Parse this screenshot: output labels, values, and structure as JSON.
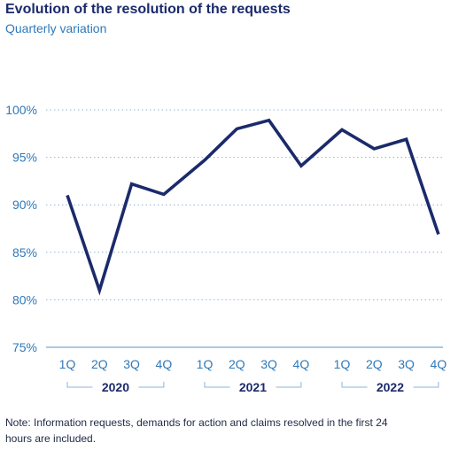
{
  "header": {
    "title": "Evolution of the resolution of the requests",
    "subtitle": "Quarterly variation"
  },
  "note": "Note: Information requests, demands for action and claims resolved in the first 24 hours are included.",
  "colors": {
    "line": "#1b2a6b",
    "axis_text": "#2e79b9",
    "grid": "#8fb5d8",
    "year_text": "#1b2a6b"
  },
  "chart_data": {
    "type": "line",
    "title": "Evolution of the resolution of the requests",
    "subtitle": "Quarterly variation",
    "xlabel": "",
    "ylabel": "",
    "ylim": [
      75,
      100
    ],
    "yticks": [
      "75%",
      "80%",
      "85%",
      "90%",
      "95%",
      "100%"
    ],
    "ytick_values": [
      75,
      80,
      85,
      90,
      95,
      100
    ],
    "grid": "horizontal dotted",
    "legend": "none",
    "groups": [
      {
        "year": "2020",
        "quarters": [
          "1Q",
          "2Q",
          "3Q",
          "4Q"
        ]
      },
      {
        "year": "2021",
        "quarters": [
          "1Q",
          "2Q",
          "3Q",
          "4Q"
        ]
      },
      {
        "year": "2022",
        "quarters": [
          "1Q",
          "2Q",
          "3Q",
          "4Q"
        ]
      }
    ],
    "series": [
      {
        "values": [
          91,
          81,
          92.2,
          91.1,
          94.7,
          98,
          98.9,
          94.1,
          97.9,
          95.9,
          96.9,
          86.9
        ]
      }
    ]
  }
}
